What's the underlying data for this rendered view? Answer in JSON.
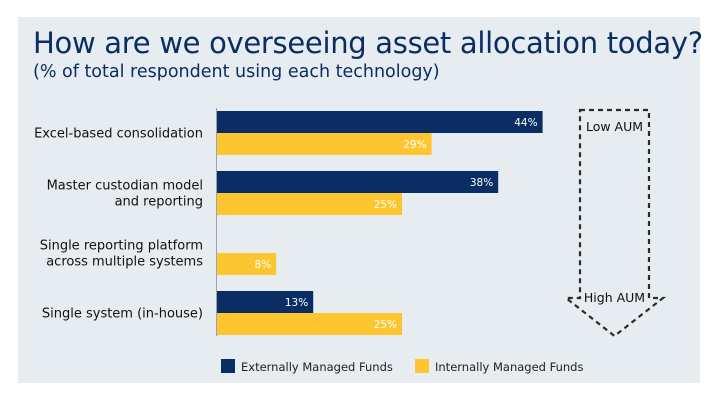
{
  "chart_data": {
    "type": "bar",
    "orientation": "horizontal",
    "title": "How are we overseeing asset allocation today?",
    "subtitle": "(% of total respondent using each technology)",
    "categories": [
      [
        "Excel-based consolidation"
      ],
      [
        "Master custodian model",
        "and reporting"
      ],
      [
        "Single reporting platform",
        "across multiple systems"
      ],
      [
        "Single system (in-house)"
      ]
    ],
    "series": [
      {
        "name": "Externally Managed Funds",
        "color": "#0a2d63",
        "values": [
          44,
          38,
          0,
          13
        ],
        "labels": [
          "44%",
          "38%",
          "",
          "13%"
        ]
      },
      {
        "name": "Internally Managed Funds",
        "color": "#fdc52f",
        "values": [
          29,
          25,
          8,
          25
        ],
        "labels": [
          "29%",
          "25%",
          "8%",
          "25%"
        ]
      }
    ],
    "xlim": [
      0,
      100
    ],
    "grid": false,
    "legend": "bottom",
    "annotation": {
      "top_label": "Low AUM",
      "bottom_label": "High AUM"
    }
  }
}
